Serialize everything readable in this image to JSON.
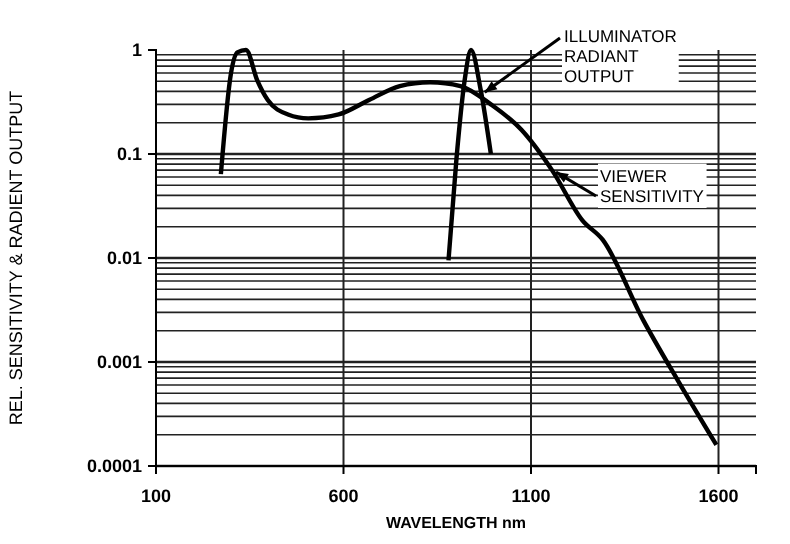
{
  "chart_data": {
    "type": "line",
    "xlabel": "WAVELENGTH nm",
    "ylabel": "REL. SENSITIVITY & RADIENT OUTPUT",
    "xlim": [
      100,
      1700
    ],
    "xticks": [
      100,
      600,
      1100,
      1600
    ],
    "ylim": [
      0.0001,
      1
    ],
    "yticks": [
      0.0001,
      0.001,
      0.01,
      0.1,
      1
    ],
    "log": true,
    "grid": true,
    "marker": "none",
    "line_style": "solid",
    "series": [
      {
        "name": "ILLUMINATOR RADIANT OUTPUT",
        "color": "#000000",
        "x": [
          880,
          901,
          923,
          940,
          966,
          993
        ],
        "values": [
          0.0095,
          0.088,
          0.51,
          1,
          0.41,
          0.1
        ]
      },
      {
        "name": "VIEWER SENSITIVITY",
        "color": "#000000",
        "x": [
          273,
          300,
          317,
          340,
          370,
          398,
          452,
          506,
          587,
          668,
          750,
          831,
          912,
          993,
          1075,
          1156,
          1237,
          1291,
          1400,
          1491,
          1594
        ],
        "values": [
          0.064,
          0.6,
          0.95,
          1,
          0.51,
          0.33,
          0.24,
          0.22,
          0.24,
          0.33,
          0.45,
          0.49,
          0.45,
          0.3,
          0.17,
          0.07,
          0.023,
          0.015,
          0.0025,
          0.00067,
          0.00016
        ]
      }
    ]
  }
}
